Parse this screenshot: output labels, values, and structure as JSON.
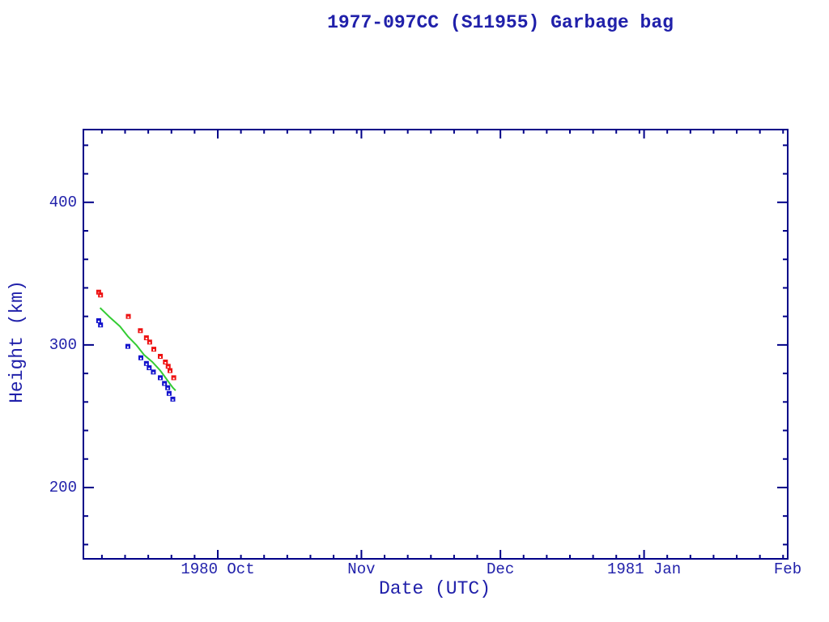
{
  "chart_data": {
    "type": "scatter",
    "title": "1977-097CC (S11955) Garbage bag",
    "xlabel": "Date (UTC)",
    "ylabel": "Height (km)",
    "colors": {
      "frame": "#000088",
      "text": "#2020aa",
      "red_marker": "#ee1111",
      "blue_marker": "#1111cc",
      "green_line": "#33cc33",
      "background": "#ffffff"
    },
    "x_axis": {
      "unit": "days since 1980-09-01",
      "range": [
        1,
        153
      ],
      "major_ticks": [
        {
          "t": 30,
          "label": "1980 Oct"
        },
        {
          "t": 61,
          "label": "Nov"
        },
        {
          "t": 91,
          "label": "Dec"
        },
        {
          "t": 122,
          "label": "1981 Jan"
        },
        {
          "t": 153,
          "label": "Feb"
        }
      ],
      "minor_ticks": [
        5,
        10,
        15,
        20,
        25,
        35,
        40,
        45,
        50,
        55,
        60,
        66,
        71,
        76,
        81,
        86,
        96,
        101,
        106,
        111,
        116,
        121,
        127,
        132,
        137,
        142,
        147,
        152
      ],
      "minor_tick_interval_days": 5
    },
    "y_axis": {
      "range": [
        150,
        451
      ],
      "major_ticks": [
        {
          "v": 200,
          "label": "200"
        },
        {
          "v": 300,
          "label": "300"
        },
        {
          "v": 400,
          "label": "400"
        }
      ],
      "minor_ticks": [
        160,
        180,
        220,
        240,
        260,
        280,
        320,
        340,
        360,
        380,
        420,
        440
      ],
      "minor_tick_interval": 20
    },
    "grid": false,
    "legend": "none",
    "series": [
      {
        "name": "red-squares",
        "type": "scatter",
        "marker": "open-square",
        "color": "#ee1111",
        "points": [
          [
            4.3,
            337
          ],
          [
            4.7,
            335
          ],
          [
            10.7,
            320
          ],
          [
            13.3,
            310
          ],
          [
            14.6,
            305
          ],
          [
            15.3,
            302
          ],
          [
            16.2,
            297
          ],
          [
            17.6,
            292
          ],
          [
            18.7,
            288
          ],
          [
            19.3,
            285
          ],
          [
            19.7,
            282
          ],
          [
            20.5,
            277
          ]
        ]
      },
      {
        "name": "blue-squares",
        "type": "scatter",
        "marker": "open-square",
        "color": "#1111cc",
        "points": [
          [
            4.3,
            317
          ],
          [
            4.7,
            314
          ],
          [
            10.6,
            299
          ],
          [
            13.4,
            291
          ],
          [
            14.6,
            287
          ],
          [
            15.2,
            284
          ],
          [
            16.1,
            281
          ],
          [
            17.6,
            277
          ],
          [
            18.5,
            273
          ],
          [
            19.2,
            270
          ],
          [
            19.5,
            266
          ],
          [
            20.3,
            262
          ]
        ]
      },
      {
        "name": "green-curve",
        "type": "line",
        "color": "#33cc33",
        "points": [
          [
            4.6,
            326
          ],
          [
            6.5,
            320
          ],
          [
            8.9,
            313
          ],
          [
            10.6,
            306
          ],
          [
            12.4,
            300
          ],
          [
            14.1,
            293
          ],
          [
            15.9,
            288
          ],
          [
            17.6,
            282
          ],
          [
            18.5,
            278
          ],
          [
            19.4,
            274
          ],
          [
            20.3,
            270
          ],
          [
            20.9,
            268
          ]
        ]
      }
    ]
  }
}
